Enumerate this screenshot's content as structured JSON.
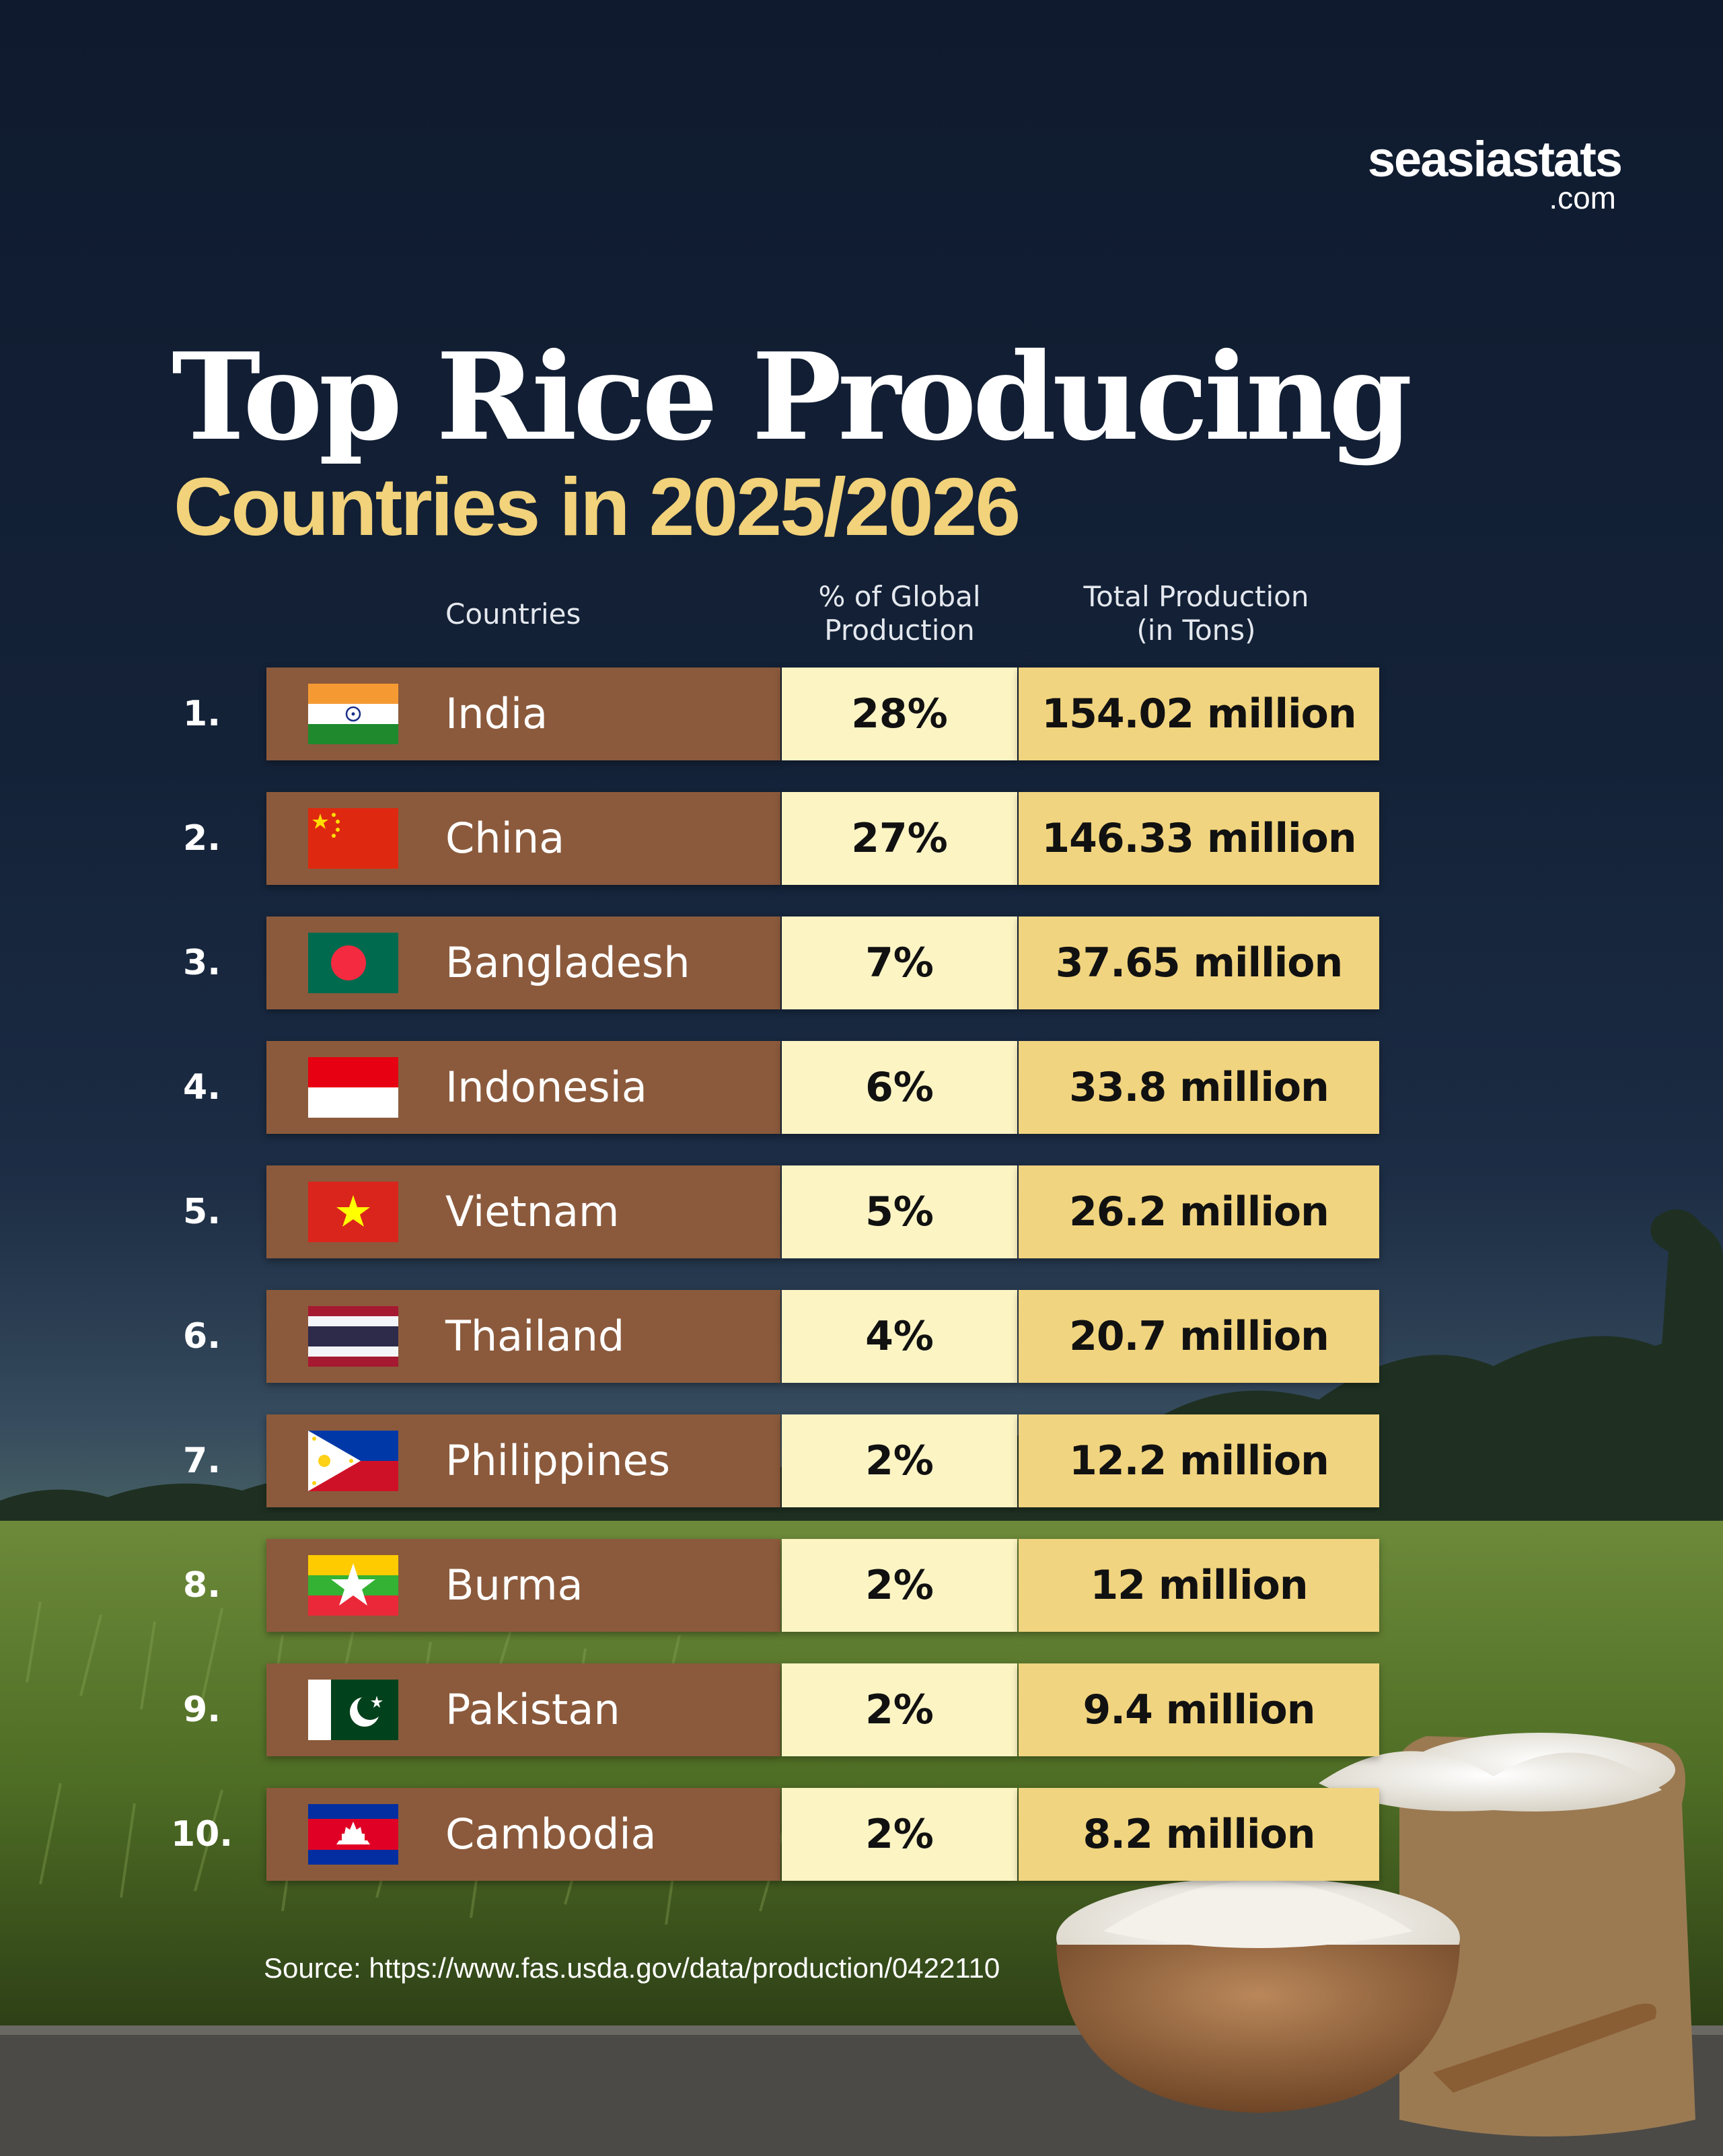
{
  "brand": {
    "name": "seasiastats",
    "suffix": ".com"
  },
  "title": {
    "line1": "Top Rice Producing",
    "line2": "Countries in 2025/2026"
  },
  "source": "Source: https://www.fas.usda.gov/data/production/0422110",
  "colors": {
    "country_cell": "#8b5a3c",
    "pct_cell": "#fdf4c4",
    "total_cell": "#f1d47f",
    "title_accent": "#f2d27a",
    "background_top": "#0f1a2e"
  },
  "chart_data": {
    "type": "table",
    "title": "Top Rice Producing Countries in 2025/2026",
    "columns": [
      "",
      "Countries",
      "% of Global Production",
      "Total Production (in Tons)"
    ],
    "column_headers": {
      "country": "Countries",
      "pct_line1": "% of Global",
      "pct_line2": "Production",
      "total_line1": "Total Production",
      "total_line2": "(in Tons)"
    },
    "rows": [
      {
        "rank": "1.",
        "country": "India",
        "flag": "india-flag",
        "share": "28%",
        "share_value": 28,
        "total": "154.02 million",
        "total_value": 154.02
      },
      {
        "rank": "2.",
        "country": "China",
        "flag": "china-flag",
        "share": "27%",
        "share_value": 27,
        "total": "146.33 million",
        "total_value": 146.33
      },
      {
        "rank": "3.",
        "country": "Bangladesh",
        "flag": "bangladesh-flag",
        "share": "7%",
        "share_value": 7,
        "total": "37.65 million",
        "total_value": 37.65
      },
      {
        "rank": "4.",
        "country": "Indonesia",
        "flag": "indonesia-flag",
        "share": "6%",
        "share_value": 6,
        "total": "33.8 million",
        "total_value": 33.8
      },
      {
        "rank": "5.",
        "country": "Vietnam",
        "flag": "vietnam-flag",
        "share": "5%",
        "share_value": 5,
        "total": "26.2 million",
        "total_value": 26.2
      },
      {
        "rank": "6.",
        "country": "Thailand",
        "flag": "thailand-flag",
        "share": "4%",
        "share_value": 4,
        "total": "20.7 million",
        "total_value": 20.7
      },
      {
        "rank": "7.",
        "country": "Philippines",
        "flag": "philippines-flag",
        "share": "2%",
        "share_value": 2,
        "total": "12.2 million",
        "total_value": 12.2
      },
      {
        "rank": "8.",
        "country": "Burma",
        "flag": "burma-flag",
        "share": "2%",
        "share_value": 2,
        "total": "12 million",
        "total_value": 12
      },
      {
        "rank": "9.",
        "country": "Pakistan",
        "flag": "pakistan-flag",
        "share": "2%",
        "share_value": 2,
        "total": "9.4 million",
        "total_value": 9.4
      },
      {
        "rank": "10.",
        "country": "Cambodia",
        "flag": "cambodia-flag",
        "share": "2%",
        "share_value": 2,
        "total": "8.2 million",
        "total_value": 8.2
      }
    ]
  }
}
